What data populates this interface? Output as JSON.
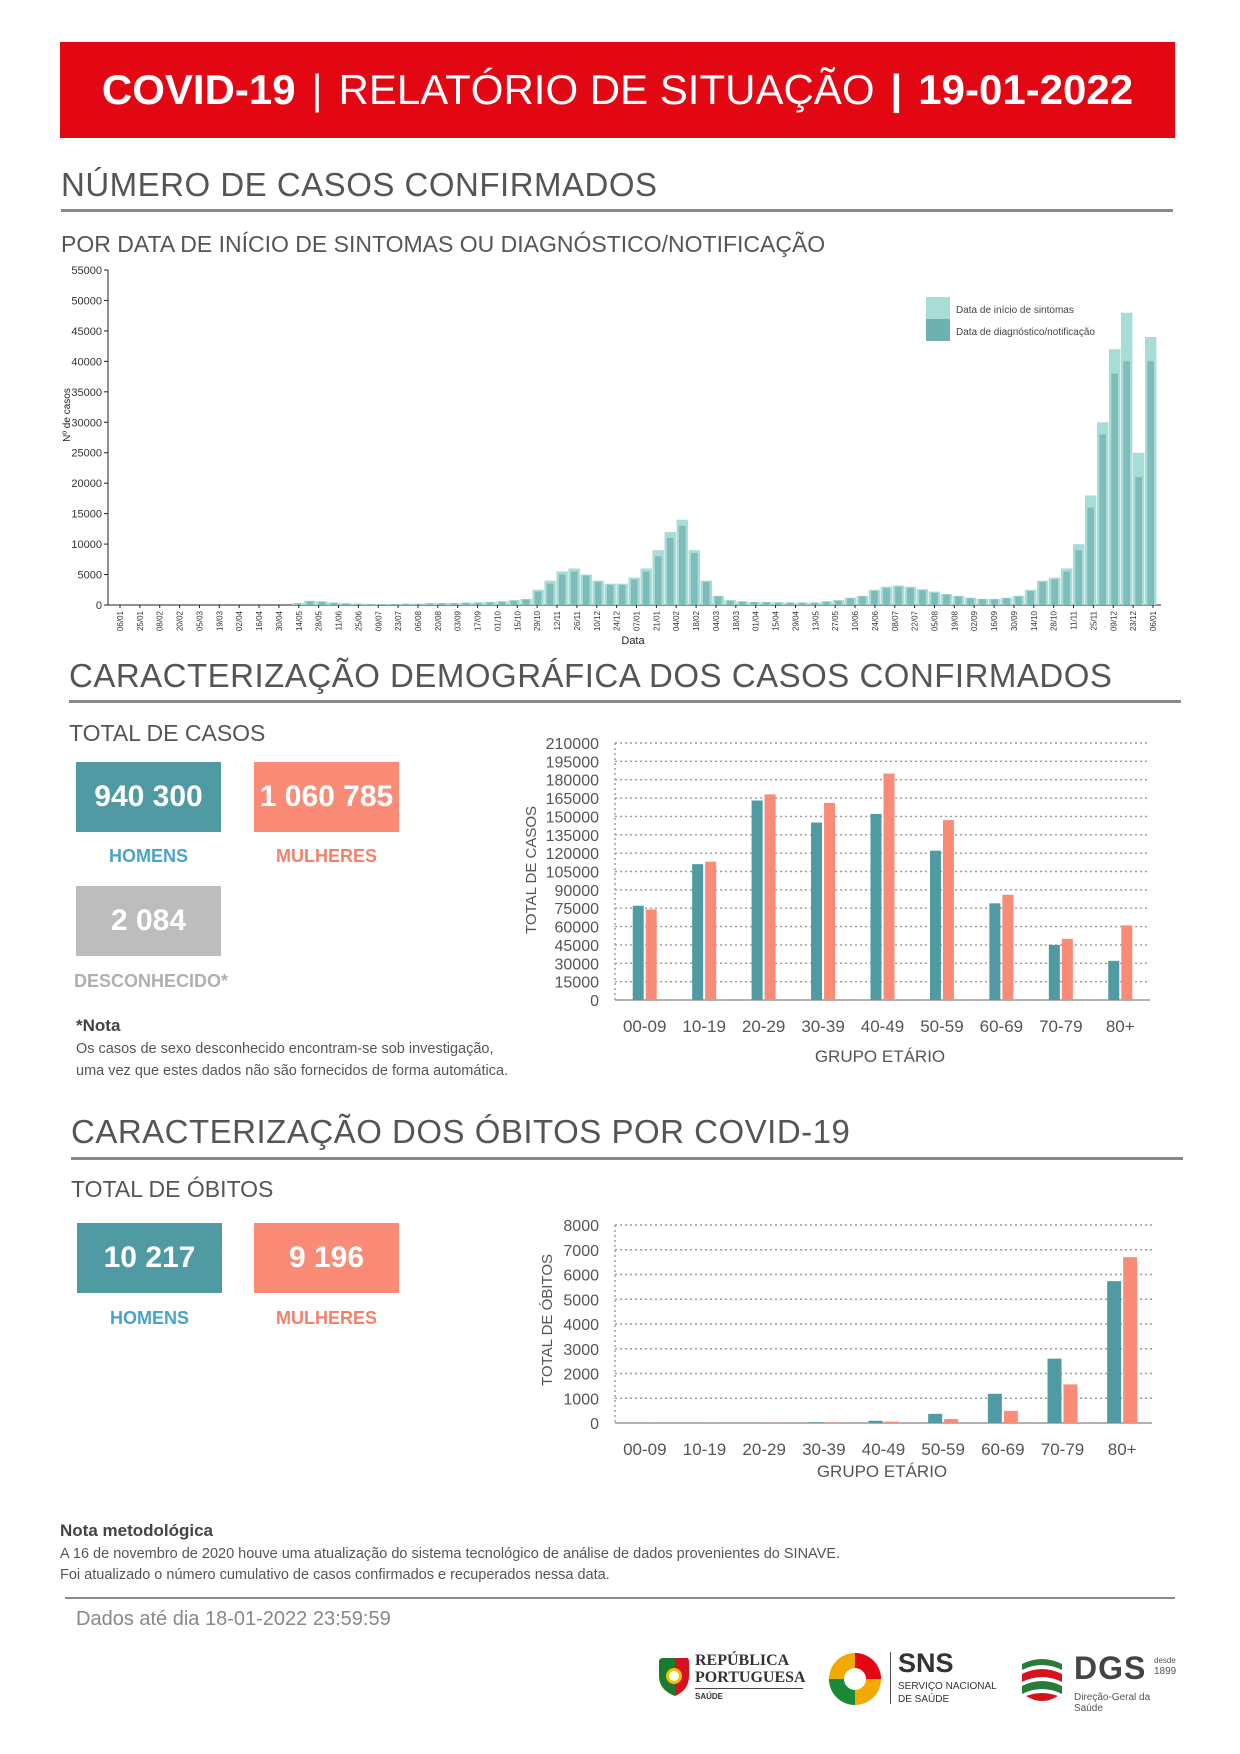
{
  "header": {
    "left": "COVID-19",
    "sep": "|",
    "middle": "RELATÓRIO DE SITUAÇÃO",
    "date": "19-01-2022"
  },
  "cases_section": {
    "title": "NÚMERO DE CASOS CONFIRMADOS",
    "subtitle": "POR DATA DE INÍCIO DE SINTOMAS OU DIAGNÓSTICO/NOTIFICAÇÃO"
  },
  "demo_section": {
    "title": "CARACTERIZAÇÃO DEMOGRÁFICA DOS CASOS CONFIRMADOS",
    "total_label": "TOTAL DE CASOS",
    "men_value": "940 300",
    "men_label": "HOMENS",
    "women_value": "1 060 785",
    "women_label": "MULHERES",
    "unknown_value": "2 084",
    "unknown_label": "DESCONHECIDO*",
    "note_title": "*Nota",
    "note_line1": "Os casos de sexo desconhecido encontram-se sob investigação,",
    "note_line2": "uma vez que estes dados não são fornecidos de forma automática."
  },
  "deaths_section": {
    "title": "CARACTERIZAÇÃO DOS ÓBITOS POR COVID-19",
    "total_label": "TOTAL DE ÓBITOS",
    "men_value": "10 217",
    "men_label": "HOMENS",
    "women_value": "9 196",
    "women_label": "MULHERES"
  },
  "method_note": {
    "title": "Nota metodológica",
    "line1": "A 16 de novembro de 2020 houve uma atualização do sistema tecnológico de análise de dados provenientes do SINAVE.",
    "line2": "Foi atualizado o número cumulativo de casos confirmados e recuperados nessa data."
  },
  "footer": {
    "data_until": "Dados até dia 18-01-2022 23:59:59",
    "logo1_line1": "REPÚBLICA",
    "logo1_line2": "PORTUGUESA",
    "logo1_line3": "SAÚDE",
    "logo2_main": "SNS",
    "logo2_line1": "SERVIÇO NACIONAL",
    "logo2_line2": "DE SAÚDE",
    "logo3_main": "DGS",
    "logo3_since1": "desde",
    "logo3_since2": "1899",
    "logo3_sub": "Direção-Geral da Saúde"
  },
  "colors": {
    "banner": "#e30613",
    "men": "#4f9aa3",
    "women": "#fa8b77",
    "unknown": "#bdbdbd",
    "symptoms": "#a8dcd6",
    "notification": "#6fb1ad"
  },
  "chart_data": [
    {
      "type": "bar",
      "xlabel": "Data",
      "ylabel": "Nº de casos",
      "ylim": [
        0,
        55000
      ],
      "yticks": [
        0,
        5000,
        10000,
        15000,
        20000,
        25000,
        30000,
        35000,
        40000,
        45000,
        50000,
        55000
      ],
      "x_ticks": [
        "06/01",
        "25/01",
        "08/02",
        "20/02",
        "05/03",
        "19/03",
        "02/04",
        "16/04",
        "30/04",
        "14/05",
        "28/05",
        "11/06",
        "25/06",
        "09/07",
        "23/07",
        "06/08",
        "20/08",
        "03/09",
        "17/09",
        "01/10",
        "15/10",
        "29/10",
        "12/11",
        "26/11",
        "10/12",
        "24/12",
        "07/01",
        "21/01",
        "04/02",
        "18/02",
        "04/03",
        "18/03",
        "01/04",
        "15/04",
        "29/04",
        "13/05",
        "27/05",
        "10/06",
        "24/06",
        "08/07",
        "22/07",
        "05/08",
        "19/08",
        "02/09",
        "16/09",
        "30/09",
        "14/10",
        "28/10",
        "11/11",
        "25/11",
        "09/12",
        "23/12",
        "06/01"
      ],
      "legend": [
        "Data de início de sintomas",
        "Data de diagnóstico/notificação"
      ],
      "legend_position": "top-right",
      "series": [
        {
          "name": "Data de início de sintomas",
          "values": [
            0,
            0,
            0,
            0,
            0,
            0,
            0,
            0,
            0,
            0,
            0,
            0,
            0,
            0,
            0,
            300,
            700,
            600,
            400,
            300,
            200,
            150,
            150,
            150,
            200,
            200,
            300,
            300,
            300,
            400,
            400,
            500,
            600,
            800,
            1000,
            2500,
            4000,
            5500,
            6000,
            5000,
            4000,
            3500,
            3500,
            4500,
            6000,
            9000,
            12000,
            14000,
            9000,
            4000,
            1500,
            800,
            600,
            500,
            500,
            450,
            400,
            400,
            400,
            600,
            800,
            1200,
            1500,
            2500,
            3000,
            3200,
            3000,
            2600,
            2200,
            1800,
            1500,
            1200,
            1000,
            1000,
            1200,
            1500,
            2500,
            4000,
            4500,
            6000,
            10000,
            18000,
            30000,
            42000,
            48000,
            25000,
            44000
          ]
        },
        {
          "name": "Data de diagnóstico/notificação",
          "values": [
            0,
            0,
            0,
            0,
            0,
            0,
            0,
            0,
            0,
            0,
            0,
            0,
            0,
            0,
            0,
            250,
            600,
            550,
            350,
            250,
            200,
            150,
            150,
            150,
            200,
            200,
            250,
            300,
            300,
            350,
            400,
            450,
            550,
            700,
            900,
            2200,
            3500,
            5000,
            5500,
            4800,
            3800,
            3300,
            3300,
            4200,
            5500,
            8000,
            11000,
            13000,
            8500,
            3800,
            1400,
            700,
            550,
            500,
            450,
            400,
            400,
            400,
            400,
            550,
            700,
            1100,
            1400,
            2300,
            2800,
            3000,
            2800,
            2400,
            2000,
            1700,
            1400,
            1100,
            950,
            950,
            1100,
            1400,
            2300,
            3800,
            4200,
            5500,
            9000,
            16000,
            28000,
            38000,
            40000,
            21000,
            40000
          ]
        }
      ]
    },
    {
      "type": "bar",
      "xlabel": "GRUPO ETÁRIO",
      "ylabel": "TOTAL DE CASOS",
      "ylim": [
        0,
        210000
      ],
      "yticks": [
        0,
        15000,
        30000,
        45000,
        60000,
        75000,
        90000,
        105000,
        120000,
        135000,
        150000,
        165000,
        180000,
        195000,
        210000
      ],
      "categories": [
        "00-09",
        "10-19",
        "20-29",
        "30-39",
        "40-49",
        "50-59",
        "60-69",
        "70-79",
        "80+"
      ],
      "series": [
        {
          "name": "Homens",
          "values": [
            77000,
            111000,
            163000,
            145000,
            152000,
            122000,
            79000,
            45000,
            32000
          ]
        },
        {
          "name": "Mulheres",
          "values": [
            74000,
            113000,
            168000,
            161000,
            185000,
            147000,
            86000,
            50000,
            61000
          ]
        }
      ]
    },
    {
      "type": "bar",
      "xlabel": "GRUPO ETÁRIO",
      "ylabel": "TOTAL DE ÓBITOS",
      "ylim": [
        0,
        8000
      ],
      "yticks": [
        0,
        1000,
        2000,
        3000,
        4000,
        5000,
        6000,
        7000,
        8000
      ],
      "categories": [
        "00-09",
        "10-19",
        "20-29",
        "30-39",
        "40-49",
        "50-59",
        "60-69",
        "70-79",
        "80+"
      ],
      "series": [
        {
          "name": "Homens",
          "values": [
            2,
            4,
            8,
            25,
            90,
            370,
            1180,
            2600,
            5730
          ]
        },
        {
          "name": "Mulheres",
          "values": [
            1,
            2,
            6,
            18,
            55,
            160,
            490,
            1560,
            6700
          ]
        }
      ]
    }
  ]
}
